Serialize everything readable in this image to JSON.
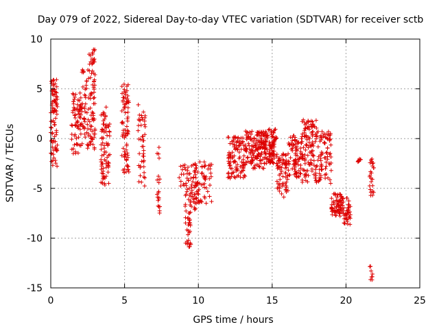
{
  "chart_data": {
    "type": "scatter",
    "title": "Day 079 of 2022, Sidereal Day-to-day VTEC variation (SDTVAR) for receiver sctb",
    "xlabel": "GPS time / hours",
    "ylabel": "SDTVAR / TECUs",
    "xlim": [
      0,
      25
    ],
    "ylim": [
      -15,
      10
    ],
    "xticks": [
      0,
      5,
      10,
      15,
      20,
      25
    ],
    "yticks": [
      -15,
      -10,
      -5,
      0,
      5,
      10
    ],
    "xtick_labels": [
      "0",
      "5",
      "10",
      "15",
      "20",
      "25"
    ],
    "ytick_labels": [
      "-15",
      "-10",
      "-5",
      "0",
      "5",
      "10"
    ],
    "grid": true,
    "marker": "+",
    "color": "#dd0000",
    "clusters": [
      {
        "x0": 0.0,
        "x1": 0.45,
        "y0": -3.0,
        "y1": 6.2,
        "n": 90
      },
      {
        "x0": 1.4,
        "x1": 2.0,
        "y0": -1.5,
        "y1": 4.6,
        "n": 60
      },
      {
        "x0": 2.0,
        "x1": 2.6,
        "y0": -1.0,
        "y1": 7.0,
        "n": 60
      },
      {
        "x0": 2.6,
        "x1": 3.0,
        "y0": -1.2,
        "y1": 9.0,
        "n": 70
      },
      {
        "x0": 3.4,
        "x1": 4.0,
        "y0": -4.7,
        "y1": 3.3,
        "n": 80
      },
      {
        "x0": 4.8,
        "x1": 5.3,
        "y0": -4.0,
        "y1": 5.5,
        "n": 80
      },
      {
        "x0": 5.9,
        "x1": 6.4,
        "y0": -5.0,
        "y1": 3.5,
        "n": 45
      },
      {
        "x0": 7.2,
        "x1": 7.4,
        "y0": -7.8,
        "y1": -0.5,
        "n": 20
      },
      {
        "x0": 8.7,
        "x1": 9.1,
        "y0": -4.9,
        "y1": -2.5,
        "n": 12
      },
      {
        "x0": 9.1,
        "x1": 9.5,
        "y0": -10.9,
        "y1": -2.7,
        "n": 55
      },
      {
        "x0": 9.5,
        "x1": 10.0,
        "y0": -7.2,
        "y1": -2.5,
        "n": 50
      },
      {
        "x0": 10.0,
        "x1": 10.9,
        "y0": -6.5,
        "y1": -2.3,
        "n": 45
      },
      {
        "x0": 12.0,
        "x1": 13.2,
        "y0": -4.0,
        "y1": 0.2,
        "n": 110
      },
      {
        "x0": 13.2,
        "x1": 14.5,
        "y0": -3.0,
        "y1": 0.8,
        "n": 140
      },
      {
        "x0": 14.5,
        "x1": 15.3,
        "y0": -2.5,
        "y1": 1.0,
        "n": 100
      },
      {
        "x0": 15.3,
        "x1": 16.1,
        "y0": -6.0,
        "y1": -1.5,
        "n": 70
      },
      {
        "x0": 16.1,
        "x1": 17.0,
        "y0": -4.0,
        "y1": 0.5,
        "n": 80
      },
      {
        "x0": 17.0,
        "x1": 18.0,
        "y0": -4.5,
        "y1": 2.0,
        "n": 110
      },
      {
        "x0": 18.0,
        "x1": 19.0,
        "y0": -4.5,
        "y1": 0.8,
        "n": 80
      },
      {
        "x0": 19.0,
        "x1": 19.8,
        "y0": -7.8,
        "y1": -5.5,
        "n": 70
      },
      {
        "x0": 19.8,
        "x1": 20.3,
        "y0": -8.7,
        "y1": -5.9,
        "n": 40
      },
      {
        "x0": 20.8,
        "x1": 21.0,
        "y0": -2.5,
        "y1": -2.0,
        "n": 10
      },
      {
        "x0": 21.6,
        "x1": 21.9,
        "y0": -6.0,
        "y1": -2.0,
        "n": 25
      },
      {
        "x0": 21.6,
        "x1": 21.8,
        "y0": -14.2,
        "y1": -12.6,
        "n": 8
      }
    ]
  }
}
